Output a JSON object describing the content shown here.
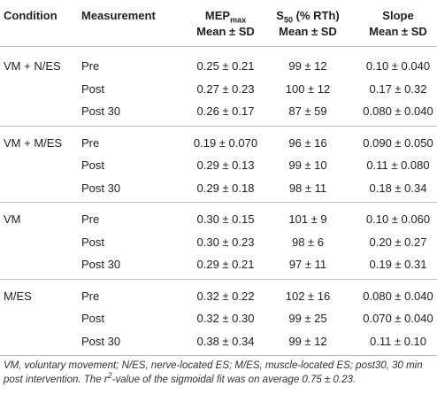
{
  "table": {
    "header": [
      {
        "line1": "Condition"
      },
      {
        "line1": "Measurement"
      },
      {
        "main": "MEP",
        "sub": "max",
        "line2": "Mean ± SD"
      },
      {
        "main": "S",
        "sub": "50",
        "rest": " (% RTh)",
        "line2": "Mean ± SD"
      },
      {
        "line1": "Slope",
        "line2": "Mean ± SD"
      }
    ],
    "groups": [
      {
        "condition": "VM + N/ES",
        "rows": [
          [
            "Pre",
            "0.25 ± 0.21",
            "99 ± 12",
            "0.10 ± 0.040"
          ],
          [
            "Post",
            "0.27 ± 0.23",
            "100 ± 12",
            "0.17 ± 0.32"
          ],
          [
            "Post 30",
            "0.26 ± 0.17",
            "87 ± 59",
            "0.080 ± 0.040"
          ]
        ]
      },
      {
        "condition": "VM + M/ES",
        "rows": [
          [
            "Pre",
            "0.19 ± 0.070",
            "96 ± 16",
            "0.090 ± 0.050"
          ],
          [
            "Post",
            "0.29 ± 0.13",
            "99 ± 10",
            "0.11 ± 0.080"
          ],
          [
            "Post 30",
            "0.29 ± 0.18",
            "98 ± 11",
            "0.18 ± 0.34"
          ]
        ]
      },
      {
        "condition": "VM",
        "rows": [
          [
            "Pre",
            "0.30 ± 0.15",
            "101 ± 9",
            "0.10 ± 0.060"
          ],
          [
            "Post",
            "0.30 ± 0.23",
            "98 ± 6",
            "0.20 ± 0.27"
          ],
          [
            "Post 30",
            "0.29 ± 0.21",
            "97 ± 11",
            "0.19 ± 0.31"
          ]
        ]
      },
      {
        "condition": "M/ES",
        "rows": [
          [
            "Pre",
            "0.32 ± 0.22",
            "102 ± 16",
            "0.080 ± 0.040"
          ],
          [
            "Post",
            "0.32 ± 0.30",
            "99 ± 25",
            "0.070 ± 0.040"
          ],
          [
            "Post 30",
            "0.38 ± 0.34",
            "99 ± 12",
            "0.11 ± 0.10"
          ]
        ]
      }
    ]
  },
  "footnote": {
    "before": "VM, voluntary movement; N/ES, nerve-located ES; M/ES, muscle-located ES; post30, 30 min post intervention. The r",
    "sup": "2",
    "after": "-value of the sigmoidal fit was on average 0.75 ± 0.23."
  }
}
